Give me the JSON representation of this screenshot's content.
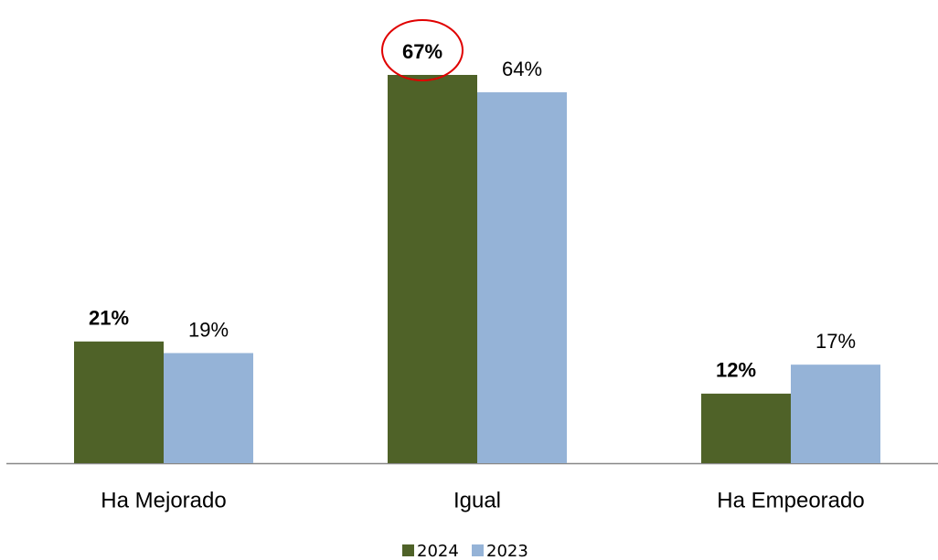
{
  "chart_data": {
    "type": "bar",
    "categories": [
      "Ha Mejorado",
      "Igual",
      "Ha Empeorado"
    ],
    "series": [
      {
        "name": "2024",
        "color": "#4f6228",
        "values": [
          21,
          67,
          12
        ],
        "value_labels": [
          "21%",
          "67%",
          "12%"
        ]
      },
      {
        "name": "2023",
        "color": "#95b3d7",
        "values": [
          19,
          64,
          17
        ],
        "value_labels": [
          "19%",
          "64%",
          "17%"
        ]
      }
    ],
    "legend": "bottom"
  }
}
